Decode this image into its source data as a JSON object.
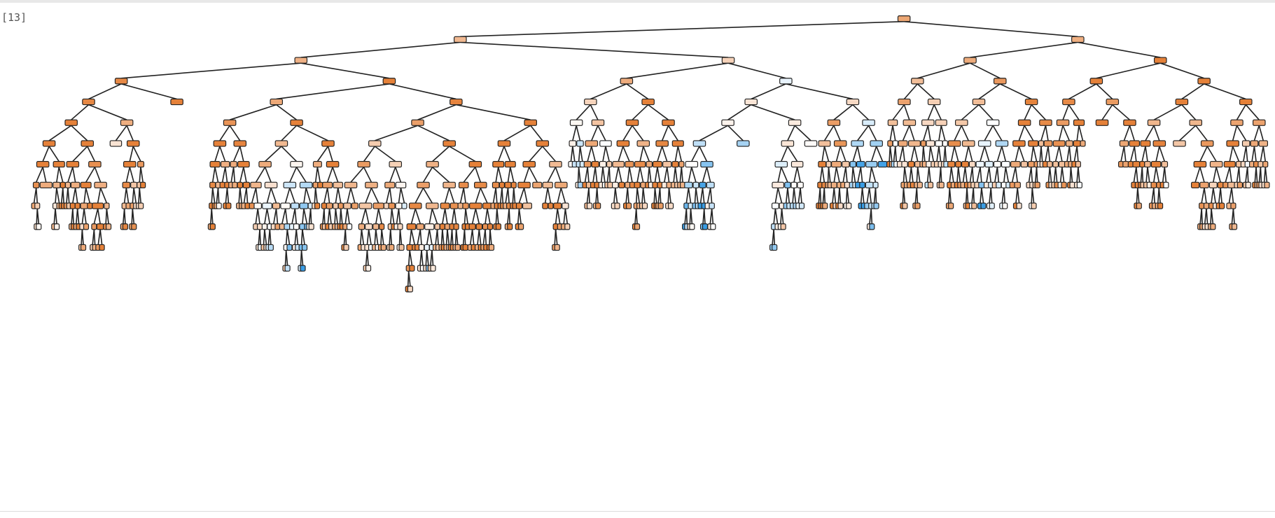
{
  "cell": {
    "prompt": "[13]"
  }
}
